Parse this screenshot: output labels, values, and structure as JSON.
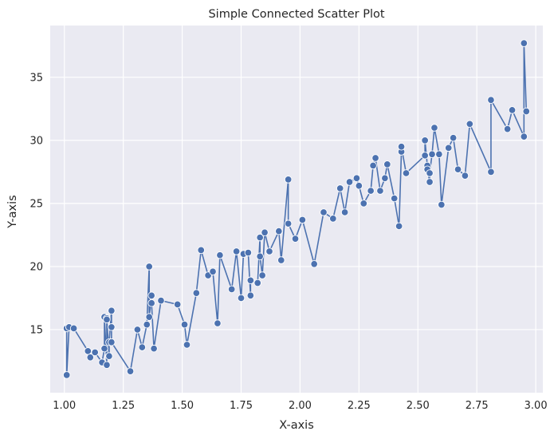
{
  "chart_data": {
    "type": "line",
    "title": "Simple Connected Scatter Plot",
    "xlabel": "X-axis",
    "ylabel": "Y-axis",
    "xlim": [
      0.94,
      3.03
    ],
    "ylim": [
      10.0,
      39.1
    ],
    "xticks": [
      1.0,
      1.25,
      1.5,
      1.75,
      2.0,
      2.25,
      2.5,
      2.75,
      3.0
    ],
    "xtick_labels": [
      "1.00",
      "1.25",
      "1.50",
      "1.75",
      "2.00",
      "2.25",
      "2.50",
      "2.75",
      "3.00"
    ],
    "yticks": [
      15,
      20,
      25,
      30,
      35
    ],
    "ytick_labels": [
      "15",
      "20",
      "25",
      "30",
      "35"
    ],
    "grid": true,
    "style": {
      "background": "#eaeaf2",
      "grid_color": "#ffffff",
      "line_color": "#4c72b0",
      "marker_edge": "#ffffff"
    },
    "series": [
      {
        "marker": "o",
        "x": [
          1.01,
          1.01,
          1.02,
          1.04,
          1.1,
          1.11,
          1.13,
          1.16,
          1.17,
          1.17,
          1.18,
          1.18,
          1.18,
          1.19,
          1.19,
          1.2,
          1.2,
          1.2,
          1.28,
          1.31,
          1.33,
          1.35,
          1.36,
          1.36,
          1.37,
          1.37,
          1.38,
          1.41,
          1.48,
          1.51,
          1.52,
          1.56,
          1.58,
          1.61,
          1.63,
          1.65,
          1.66,
          1.71,
          1.73,
          1.75,
          1.76,
          1.78,
          1.79,
          1.79,
          1.82,
          1.83,
          1.83,
          1.84,
          1.85,
          1.87,
          1.91,
          1.92,
          1.95,
          1.95,
          1.98,
          2.01,
          2.06,
          2.1,
          2.14,
          2.17,
          2.19,
          2.21,
          2.24,
          2.25,
          2.27,
          2.3,
          2.31,
          2.32,
          2.34,
          2.36,
          2.37,
          2.4,
          2.42,
          2.43,
          2.43,
          2.45,
          2.53,
          2.53,
          2.54,
          2.54,
          2.55,
          2.55,
          2.56,
          2.57,
          2.59,
          2.6,
          2.63,
          2.65,
          2.67,
          2.7,
          2.72,
          2.81,
          2.81,
          2.88,
          2.9,
          2.95,
          2.95,
          2.96
        ],
        "y": [
          15.1,
          11.4,
          15.2,
          15.1,
          13.3,
          12.8,
          13.2,
          12.4,
          13.5,
          16.0,
          12.2,
          15.9,
          15.8,
          12.9,
          14.0,
          16.5,
          15.2,
          14.0,
          11.7,
          15.0,
          13.6,
          15.4,
          20.0,
          16.0,
          17.7,
          17.1,
          13.5,
          17.3,
          17.0,
          15.4,
          13.8,
          17.9,
          21.3,
          19.3,
          19.6,
          15.5,
          20.9,
          18.2,
          21.2,
          17.5,
          21.0,
          21.1,
          17.7,
          18.9,
          18.7,
          22.3,
          20.8,
          19.3,
          22.7,
          21.2,
          22.8,
          20.5,
          26.9,
          23.4,
          22.2,
          23.7,
          20.2,
          24.3,
          23.8,
          26.2,
          24.3,
          26.7,
          27.0,
          26.4,
          25.0,
          26.0,
          28.0,
          28.6,
          26.0,
          27.0,
          28.1,
          25.4,
          23.2,
          29.1,
          29.5,
          27.4,
          28.8,
          30.0,
          28.0,
          27.7,
          26.7,
          27.4,
          28.9,
          31.0,
          28.9,
          24.9,
          29.4,
          30.2,
          27.7,
          27.2,
          31.3,
          27.5,
          33.2,
          30.9,
          32.4,
          30.3,
          37.7,
          32.3
        ]
      }
    ]
  }
}
